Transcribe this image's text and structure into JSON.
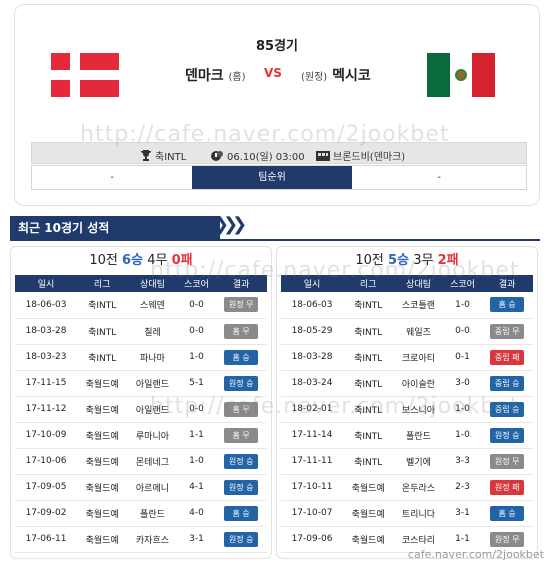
{
  "match": {
    "round": "85경기",
    "home": "덴마크",
    "home_tag": "(홈)",
    "vs": "VS",
    "away_tag": "(원정)",
    "away": "멕시코",
    "league_icon": "trophy-icon",
    "league": "축INTL",
    "time_icon": "clock-icon",
    "datetime": "06.10(일) 03:00",
    "venue_icon": "stadium-icon",
    "venue": "브론드비(덴마크)",
    "rank_left": "-",
    "rank_label": "팀순위",
    "rank_right": "-"
  },
  "section": {
    "title": "최근 10경기 성적"
  },
  "colors": {
    "navy": "#1f3a6b",
    "win": "#2364a6",
    "draw": "#8a8a8a",
    "lose": "#d9363e"
  },
  "columns": [
    "일시",
    "리그",
    "상대팀",
    "스코어",
    "결과"
  ],
  "left": {
    "summary": {
      "prefix": "10전",
      "wins": "6승",
      "draws": "4무",
      "losses": "0패"
    },
    "rows": [
      {
        "date": "18-06-03",
        "league": "축INTL",
        "opponent": "스웨덴",
        "score": "0-0",
        "result": "원정 무",
        "kind": "draw"
      },
      {
        "date": "18-03-28",
        "league": "축INTL",
        "opponent": "칠레",
        "score": "0-0",
        "result": "홈 무",
        "kind": "draw"
      },
      {
        "date": "18-03-23",
        "league": "축INTL",
        "opponent": "파나마",
        "score": "1-0",
        "result": "홈 승",
        "kind": "win"
      },
      {
        "date": "17-11-15",
        "league": "축월드예",
        "opponent": "아일랜드",
        "score": "5-1",
        "result": "원정 승",
        "kind": "win"
      },
      {
        "date": "17-11-12",
        "league": "축월드예",
        "opponent": "아일랜드",
        "score": "0-0",
        "result": "홈 무",
        "kind": "draw"
      },
      {
        "date": "17-10-09",
        "league": "축월드예",
        "opponent": "루마니아",
        "score": "1-1",
        "result": "홈 무",
        "kind": "draw"
      },
      {
        "date": "17-10-06",
        "league": "축월드예",
        "opponent": "몬테네그",
        "score": "1-0",
        "result": "원정 승",
        "kind": "win"
      },
      {
        "date": "17-09-05",
        "league": "축월드예",
        "opponent": "아르메니",
        "score": "4-1",
        "result": "원정 승",
        "kind": "win"
      },
      {
        "date": "17-09-02",
        "league": "축월드예",
        "opponent": "폴란드",
        "score": "4-0",
        "result": "홈 승",
        "kind": "win"
      },
      {
        "date": "17-06-11",
        "league": "축월드예",
        "opponent": "카자흐스",
        "score": "3-1",
        "result": "원정 승",
        "kind": "win"
      }
    ]
  },
  "right": {
    "summary": {
      "prefix": "10전",
      "wins": "5승",
      "draws": "3무",
      "losses": "2패"
    },
    "rows": [
      {
        "date": "18-06-03",
        "league": "축INTL",
        "opponent": "스코틀랜",
        "score": "1-0",
        "result": "홈 승",
        "kind": "win"
      },
      {
        "date": "18-05-29",
        "league": "축INTL",
        "opponent": "웨일즈",
        "score": "0-0",
        "result": "중립 무",
        "kind": "draw"
      },
      {
        "date": "18-03-28",
        "league": "축INTL",
        "opponent": "크로아티",
        "score": "0-1",
        "result": "중립 패",
        "kind": "lose"
      },
      {
        "date": "18-03-24",
        "league": "축INTL",
        "opponent": "아이슬란",
        "score": "3-0",
        "result": "중립 승",
        "kind": "win"
      },
      {
        "date": "18-02-01",
        "league": "축INTL",
        "opponent": "보스니아",
        "score": "1-0",
        "result": "중립 승",
        "kind": "win"
      },
      {
        "date": "17-11-14",
        "league": "축INTL",
        "opponent": "폴란드",
        "score": "1-0",
        "result": "원정 승",
        "kind": "win"
      },
      {
        "date": "17-11-11",
        "league": "축INTL",
        "opponent": "벨기에",
        "score": "3-3",
        "result": "원정 무",
        "kind": "draw"
      },
      {
        "date": "17-10-11",
        "league": "축월드예",
        "opponent": "온두라스",
        "score": "2-3",
        "result": "원정 패",
        "kind": "lose"
      },
      {
        "date": "17-10-07",
        "league": "축월드예",
        "opponent": "트리니다",
        "score": "3-1",
        "result": "홈 승",
        "kind": "win"
      },
      {
        "date": "17-09-06",
        "league": "축월드예",
        "opponent": "코스타리",
        "score": "1-1",
        "result": "원정 무",
        "kind": "draw"
      }
    ]
  },
  "watermark": "http://cafe.naver.com/2jookbet",
  "footer": "cafe.naver.com/2jookbet"
}
